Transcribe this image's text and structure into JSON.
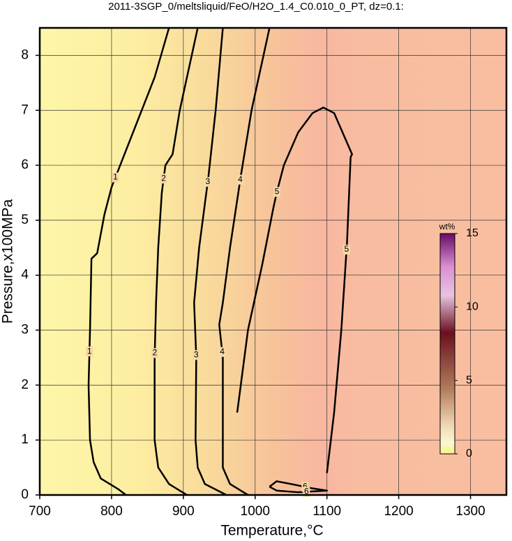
{
  "chart_data": {
    "type": "contour",
    "title": "2011-3SGP_0/meltsliquid/FeO/H2O_1.4_C0.010_0_PT, dz=0.1:",
    "xlabel": "Temperature,°C",
    "ylabel": "Pressure,x100MPa",
    "xlim": [
      700,
      1350
    ],
    "ylim": [
      0,
      8.5
    ],
    "xticks": [
      700,
      800,
      900,
      1000,
      1100,
      1200,
      1300
    ],
    "yticks": [
      0,
      1,
      2,
      3,
      4,
      5,
      6,
      7,
      8
    ],
    "grid": true,
    "contours": [
      {
        "level": 1,
        "x": [
          820,
          810,
          785,
          775,
          770,
          768,
          770,
          772,
          780,
          790,
          800,
          830,
          860,
          880
        ],
        "y": [
          0,
          0.1,
          0.3,
          0.6,
          1,
          2,
          3,
          4.3,
          4.4,
          5.1,
          5.6,
          6.6,
          7.6,
          8.5
        ]
      },
      {
        "level": 2,
        "x": [
          905,
          880,
          865,
          860,
          860,
          862,
          865,
          870,
          875,
          885,
          895,
          920
        ],
        "y": [
          0,
          0.2,
          0.5,
          1,
          2.5,
          3.5,
          4.5,
          5.5,
          6,
          6.2,
          7,
          8.5
        ]
      },
      {
        "level": 3,
        "x": [
          960,
          930,
          920,
          917,
          918,
          915,
          922,
          935,
          945,
          955
        ],
        "y": [
          0,
          0.2,
          0.5,
          1,
          2.5,
          3.5,
          4.5,
          5.8,
          7,
          8.5
        ]
      },
      {
        "level": 4,
        "x": [
          990,
          965,
          955,
          955,
          955,
          950,
          955,
          965,
          980,
          995,
          1020
        ],
        "y": [
          0,
          0.2,
          0.5,
          1.5,
          2.5,
          3.1,
          3.5,
          4.5,
          5.8,
          7,
          8.5
        ]
      },
      {
        "level": 5,
        "x": [
          975,
          990,
          1010,
          1025,
          1030,
          1040,
          1060,
          1080,
          1095,
          1110,
          1125,
          1135,
          1133,
          1128,
          1120,
          1110,
          1100
        ],
        "y": [
          1.5,
          3,
          4.2,
          5.2,
          5.5,
          6,
          6.6,
          6.95,
          7.05,
          6.95,
          6.5,
          6.2,
          6.15,
          4.6,
          3,
          1.5,
          0.4
        ]
      },
      {
        "level": 6,
        "x": [
          1020,
          1030,
          1050,
          1080,
          1100,
          1060,
          1030,
          1020
        ],
        "y": [
          0.15,
          0.25,
          0.2,
          0.12,
          0.08,
          0.05,
          0.08,
          0.15
        ]
      }
    ],
    "colorbar": {
      "label": "wt%",
      "lim": [
        0,
        15
      ],
      "ticks": [
        0,
        5,
        10,
        15
      ]
    }
  }
}
